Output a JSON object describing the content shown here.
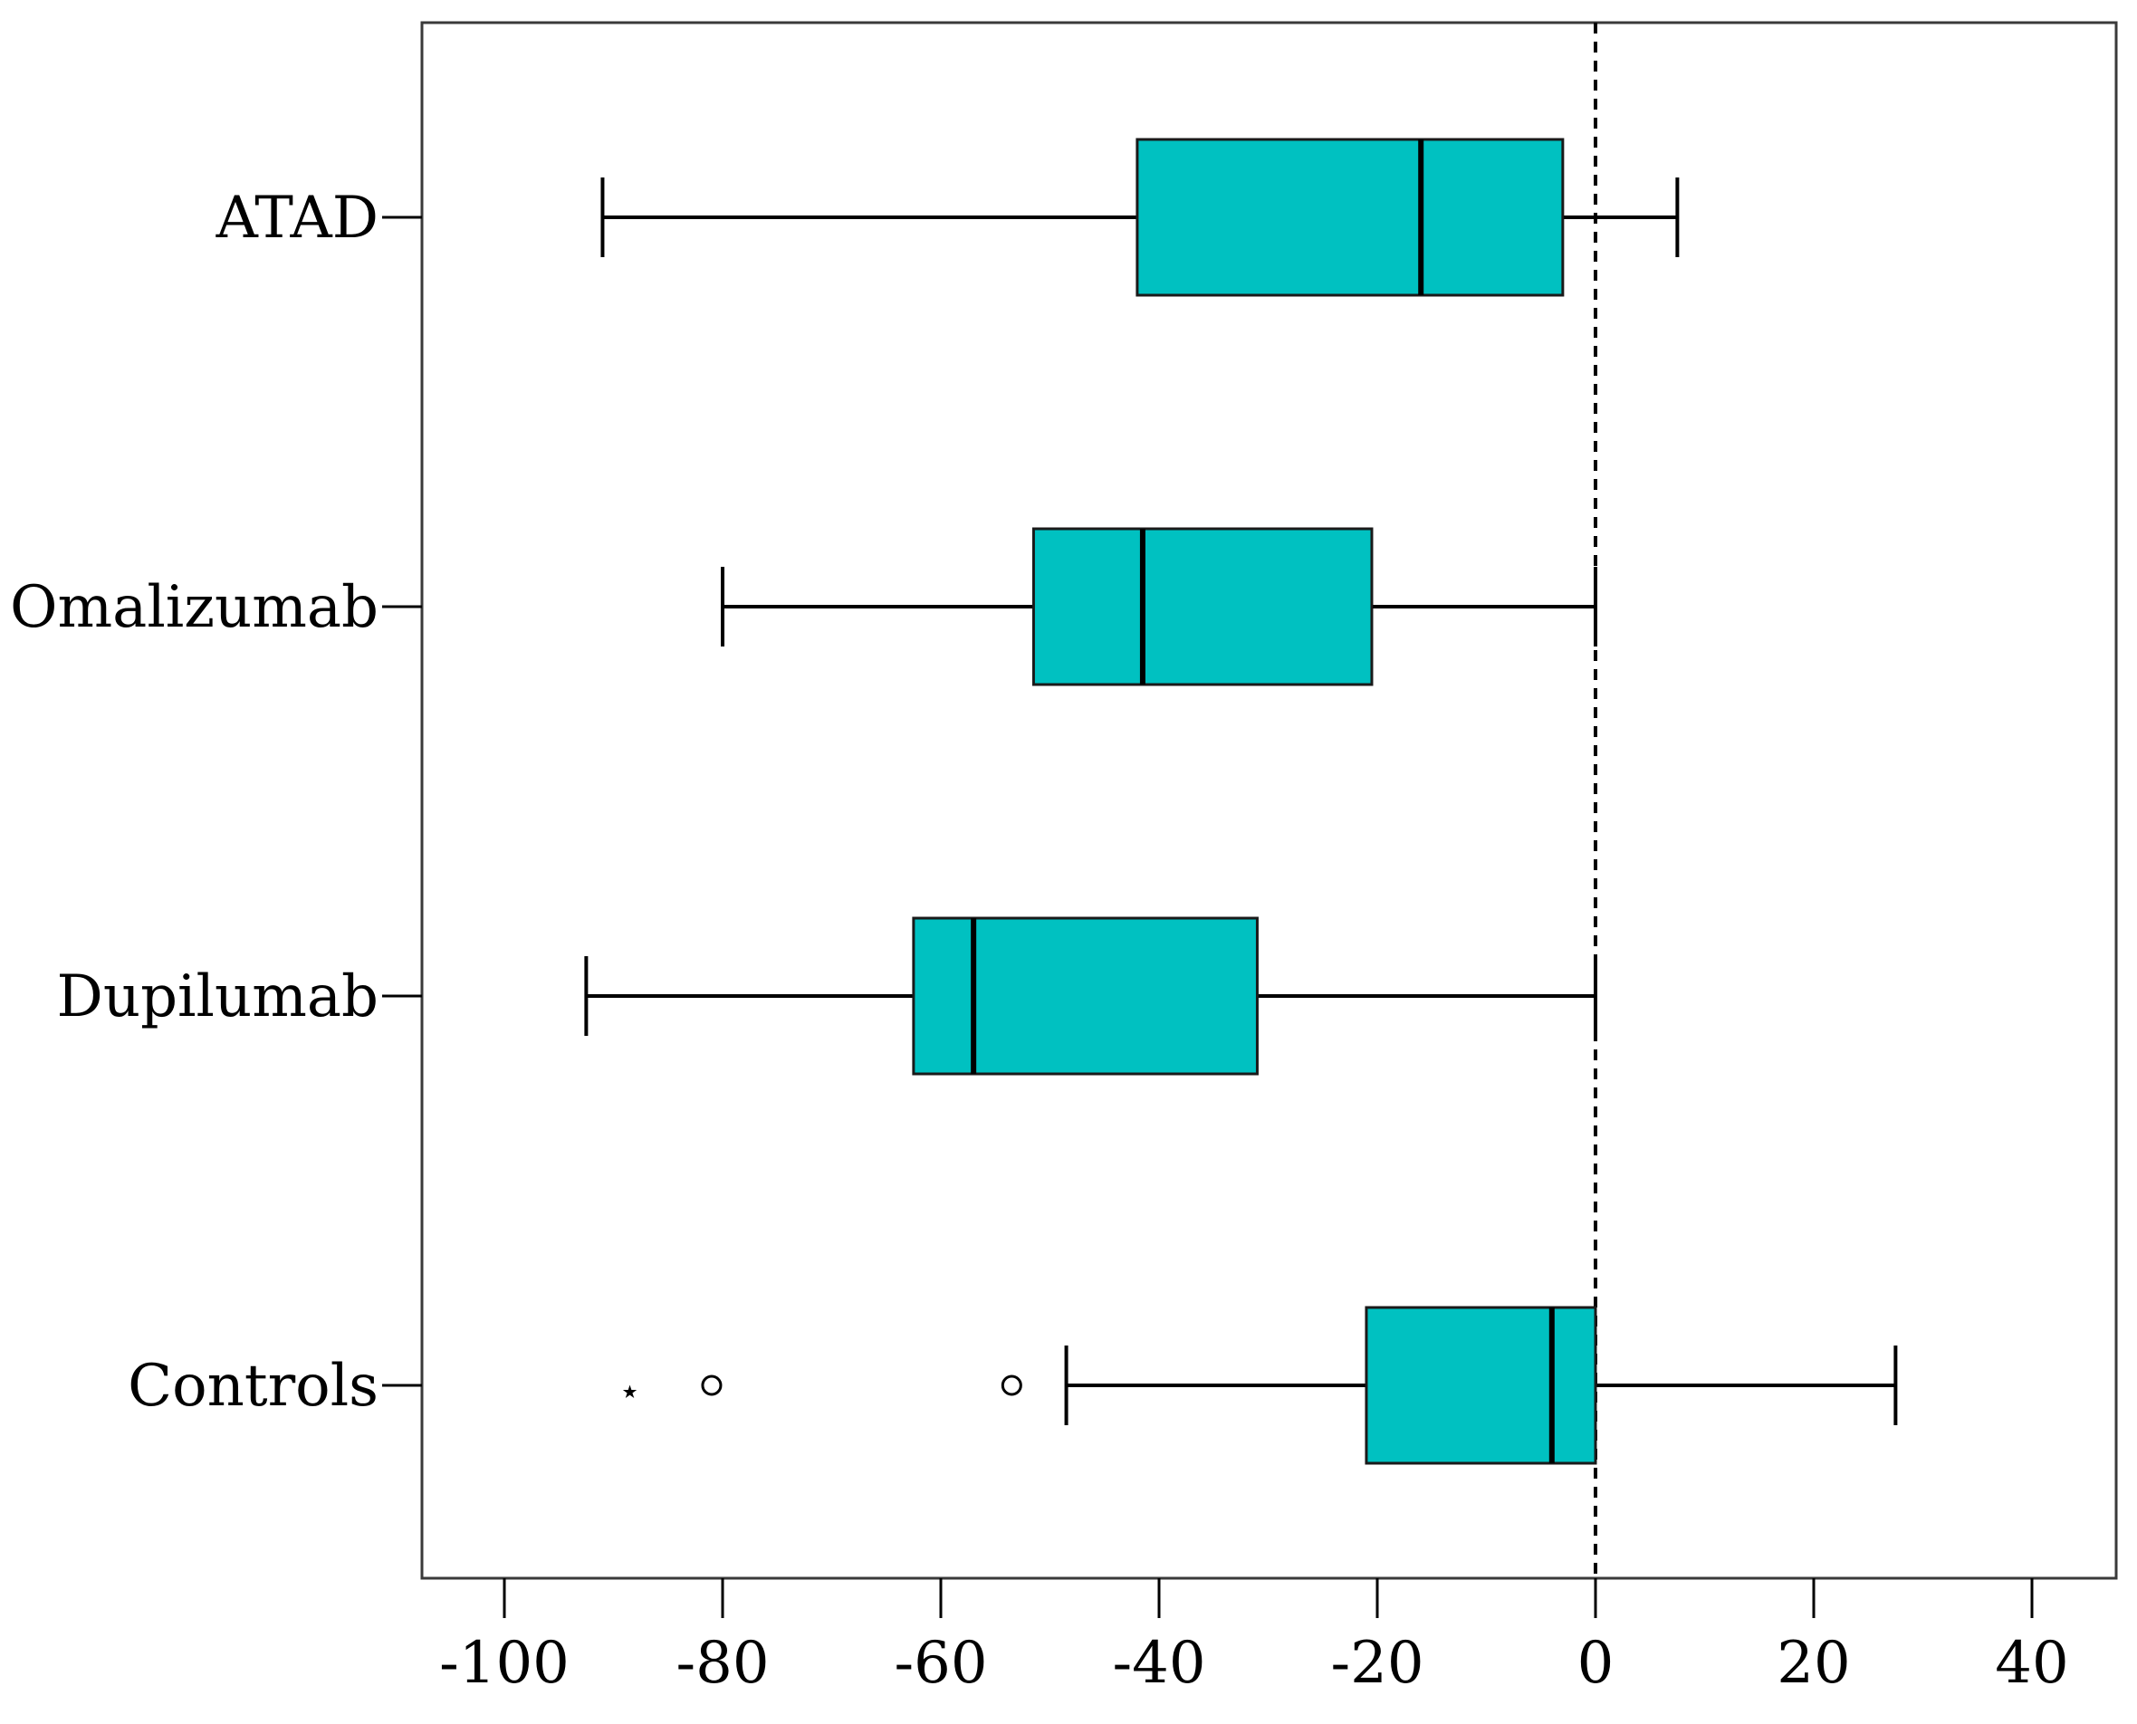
{
  "chart_data": {
    "type": "boxplot",
    "orientation": "horizontal",
    "title": "",
    "xlabel": "",
    "ylabel": "",
    "xlim": [
      -108,
      48
    ],
    "xticks": [
      -100,
      -80,
      -60,
      -40,
      -20,
      0,
      20,
      40
    ],
    "xtick_labels": [
      "-100",
      "-80",
      "-60",
      "-40",
      "-20",
      "0",
      "20",
      "40"
    ],
    "reference_line": {
      "x": 0,
      "style": "dashed"
    },
    "box_color": "#00C1C1",
    "categories": [
      "ATAD",
      "Omalizumab",
      "Dupilumab",
      "Controls"
    ],
    "boxes": [
      {
        "label": "ATAD",
        "whisker_low": -91,
        "q1": -42,
        "median": -16,
        "q3": -3,
        "whisker_high": 7.5,
        "outliers": [],
        "extremes": []
      },
      {
        "label": "Omalizumab",
        "whisker_low": -80,
        "q1": -51.5,
        "median": -41.5,
        "q3": -20.5,
        "whisker_high": 0,
        "outliers": [],
        "extremes": []
      },
      {
        "label": "Dupilumab",
        "whisker_low": -92.5,
        "q1": -62.5,
        "median": -57,
        "q3": -31,
        "whisker_high": 0,
        "outliers": [],
        "extremes": []
      },
      {
        "label": "Controls",
        "whisker_low": -48.5,
        "q1": -21,
        "median": -4,
        "q3": 0,
        "whisker_high": 27.5,
        "outliers": [
          -81,
          -53.5
        ],
        "extremes": [
          -88.5
        ]
      }
    ]
  }
}
